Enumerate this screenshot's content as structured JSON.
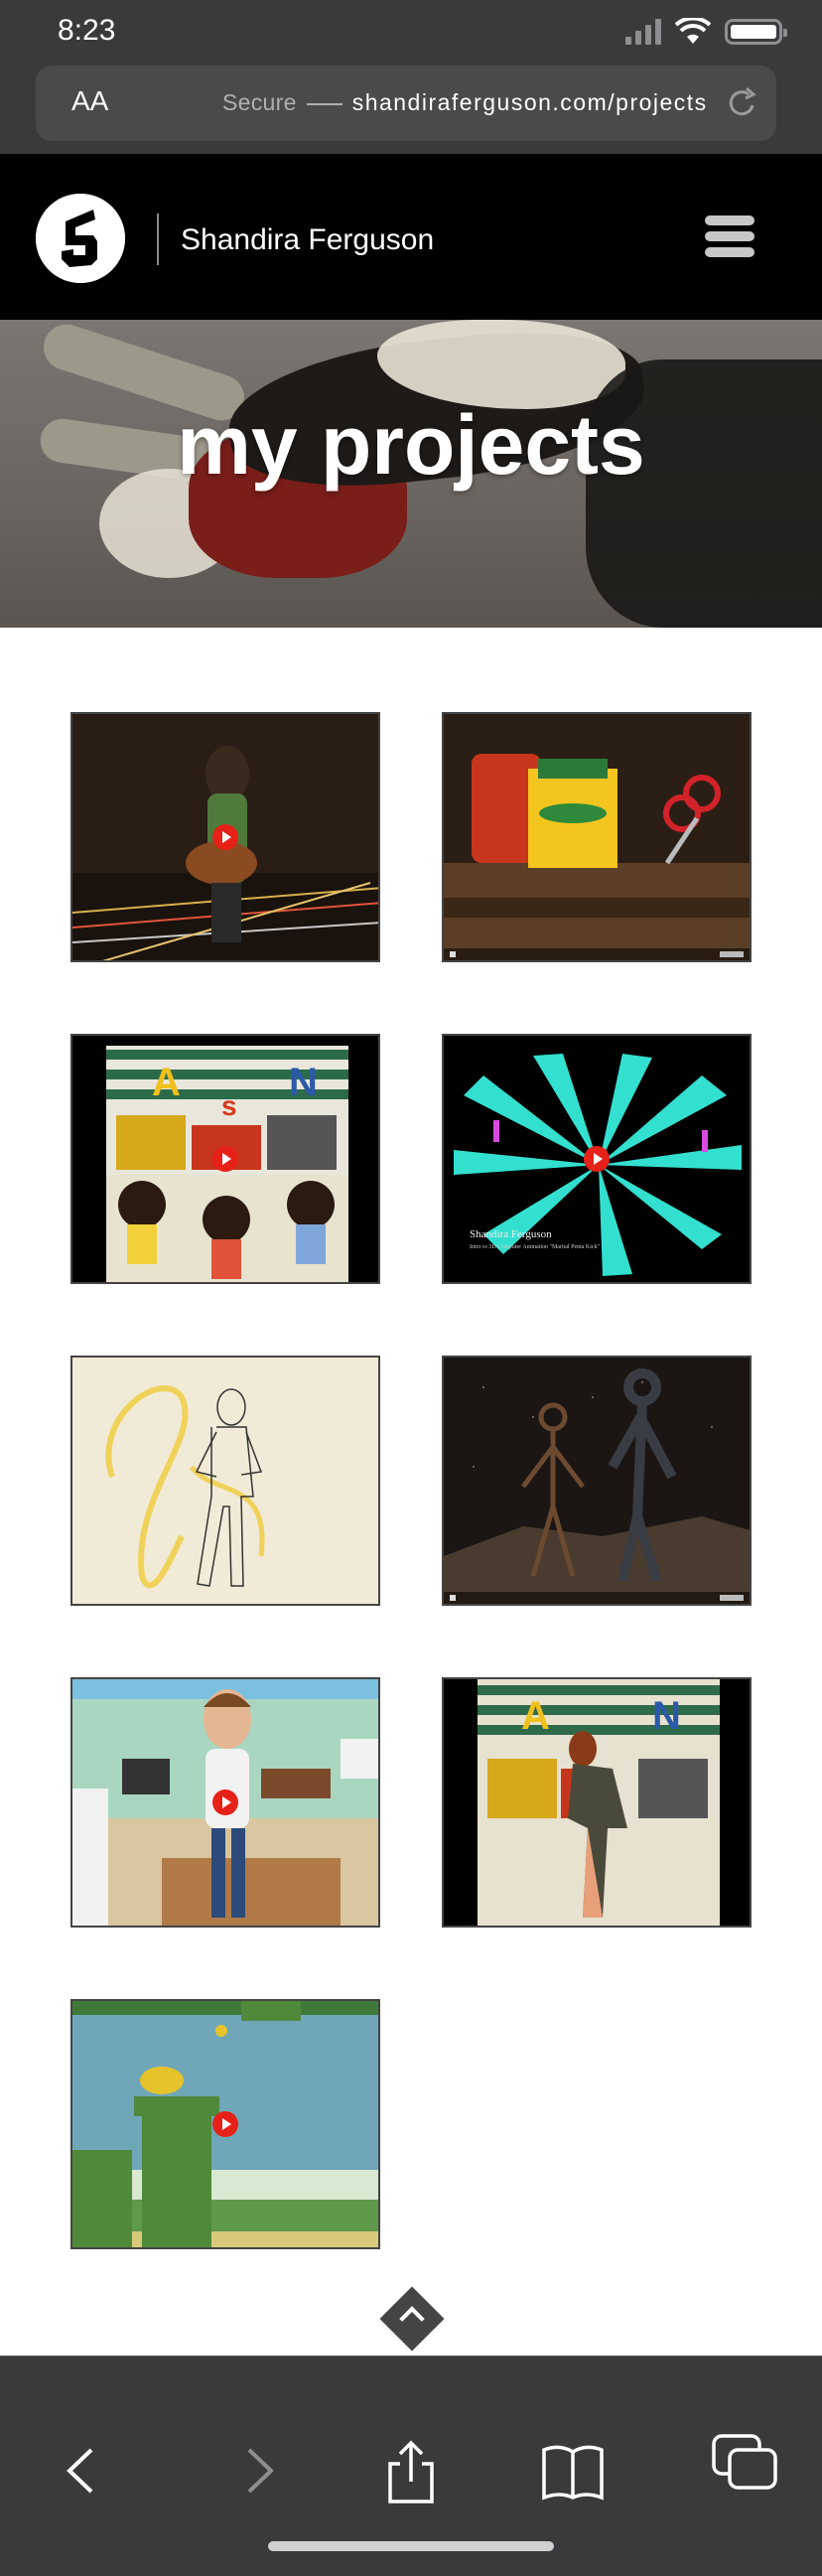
{
  "status_bar": {
    "time": "8:23"
  },
  "browser": {
    "text_size_label": "AA",
    "secure_label": "Secure",
    "host": "shandiraferguson.com/projects"
  },
  "site": {
    "name": "Shandira Ferguson",
    "hero_title": "my projects"
  },
  "projects": [
    {
      "label": "Project video 1",
      "colors": [
        "#2a1d16",
        "#3b2a1d"
      ]
    },
    {
      "label": "Project video 2",
      "colors": [
        "#2b1e15",
        "#6b4a2a"
      ]
    },
    {
      "label": "Project video 3",
      "colors": [
        "#2c6b4a",
        "#e9e7dc"
      ]
    },
    {
      "label": "Project video 4",
      "colors": [
        "#000000",
        "#33e0d0"
      ]
    },
    {
      "label": "Project video 5",
      "colors": [
        "#f1ead6",
        "#efe6cf"
      ]
    },
    {
      "label": "Project video 6",
      "colors": [
        "#1b1613",
        "#3a2e25"
      ]
    },
    {
      "label": "Project video 7",
      "colors": [
        "#a9d6c0",
        "#e6ddc8"
      ]
    },
    {
      "label": "Project video 8",
      "colors": [
        "#2f6b4a",
        "#e7e1cf"
      ]
    },
    {
      "label": "Project video 9",
      "colors": [
        "#6fa7b8",
        "#5f9a4a"
      ]
    }
  ],
  "project4_caption": {
    "title": "Shandira Ferguson",
    "subtitle": "Intro to 3D Computer Animation \"Martial Penta Kick\""
  }
}
